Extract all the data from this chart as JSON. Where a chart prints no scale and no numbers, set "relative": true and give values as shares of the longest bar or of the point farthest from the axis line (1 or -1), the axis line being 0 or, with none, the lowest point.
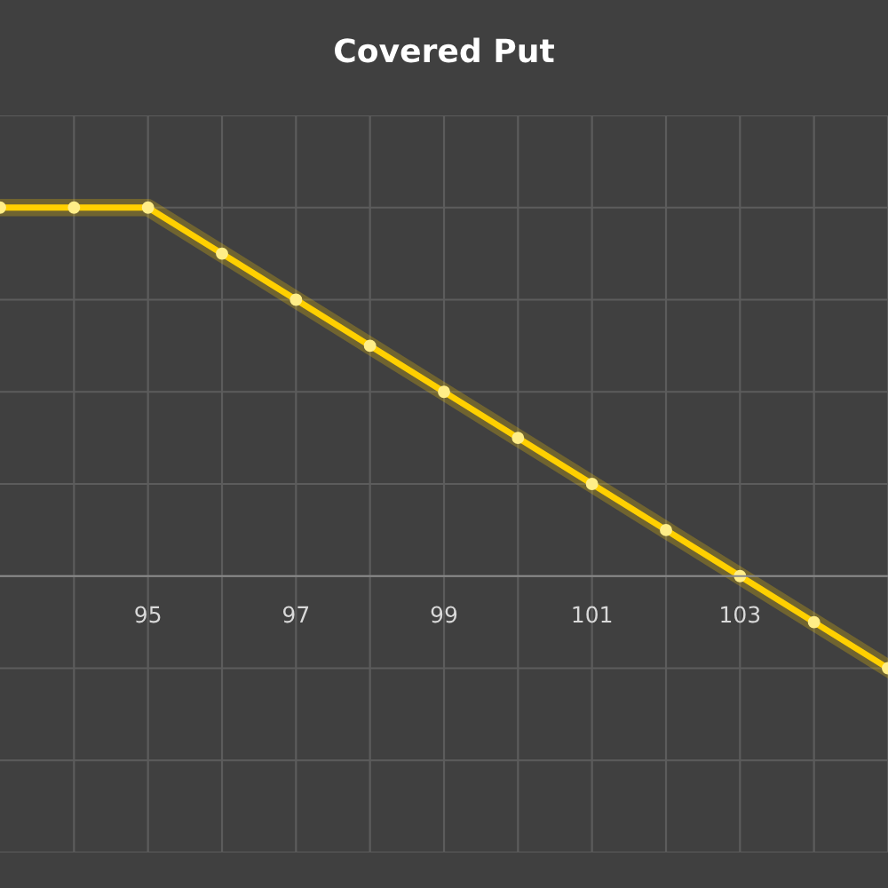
{
  "chart_data": {
    "type": "line",
    "title": "Covered Put",
    "relative": true,
    "x": [
      93,
      94,
      95,
      96,
      97,
      98,
      99,
      100,
      101,
      102,
      103,
      104,
      105
    ],
    "xlim": [
      93,
      105
    ],
    "xticks": [
      {
        "value": 94,
        "label": null
      },
      95,
      {
        "value": 96,
        "label": null
      },
      97,
      {
        "value": 98,
        "label": null
      },
      99,
      {
        "value": 100,
        "label": null
      },
      101,
      {
        "value": 102,
        "label": null
      },
      103,
      {
        "value": 104,
        "label": null
      },
      {
        "value": 105,
        "label": null
      }
    ],
    "series": [
      {
        "color": "#ffd000",
        "values": [
          1,
          1,
          1,
          0.875,
          0.75,
          0.625,
          0.5,
          0.375,
          0.25,
          0.125,
          0,
          -0.125,
          -0.25
        ]
      }
    ],
    "marker": "circle",
    "line_style": "solid",
    "grid": true,
    "legend": false
  }
}
